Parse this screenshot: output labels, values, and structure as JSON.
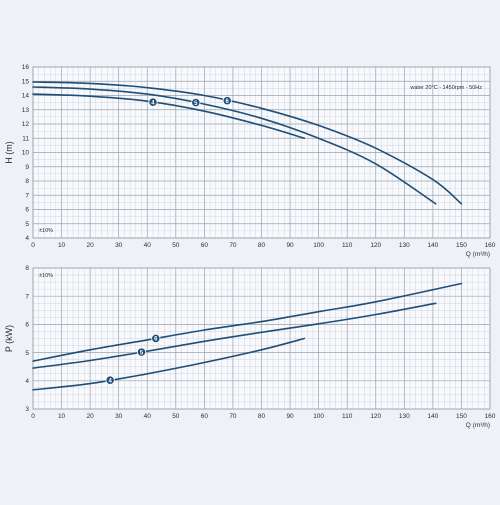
{
  "chart_data": [
    {
      "type": "line",
      "ylabel": "H (m)",
      "xlabel": "Q (m³/h)",
      "xlim": [
        0,
        160
      ],
      "ylim": [
        4,
        16
      ],
      "xticks": [
        0,
        10,
        20,
        30,
        40,
        50,
        60,
        70,
        80,
        90,
        100,
        110,
        120,
        130,
        140,
        150,
        160
      ],
      "yticks": [
        4,
        5,
        6,
        7,
        8,
        9,
        10,
        11,
        12,
        13,
        14,
        15,
        16
      ],
      "grid": true,
      "annotations": [
        "water 20°C - 1450rpm - 50Hz",
        "±10%"
      ],
      "series": [
        {
          "name": "4",
          "label_at": 42,
          "points": [
            [
              0,
              14.1
            ],
            [
              20,
              13.95
            ],
            [
              40,
              13.6
            ],
            [
              60,
              12.9
            ],
            [
              80,
              11.9
            ],
            [
              95,
              11.0
            ]
          ]
        },
        {
          "name": "5",
          "label_at": 57,
          "points": [
            [
              0,
              14.6
            ],
            [
              20,
              14.45
            ],
            [
              40,
              14.1
            ],
            [
              60,
              13.4
            ],
            [
              80,
              12.4
            ],
            [
              100,
              11.0
            ],
            [
              120,
              9.2
            ],
            [
              141,
              6.4
            ]
          ]
        },
        {
          "name": "6",
          "label_at": 68,
          "points": [
            [
              0,
              14.95
            ],
            [
              20,
              14.85
            ],
            [
              40,
              14.55
            ],
            [
              60,
              14.0
            ],
            [
              80,
              13.1
            ],
            [
              100,
              11.9
            ],
            [
              120,
              10.3
            ],
            [
              140,
              8.1
            ],
            [
              150,
              6.4
            ]
          ]
        }
      ]
    },
    {
      "type": "line",
      "ylabel": "P (kW)",
      "xlabel": "Q (m³/h)",
      "xlim": [
        0,
        160
      ],
      "ylim": [
        3,
        8
      ],
      "xticks": [
        0,
        10,
        20,
        30,
        40,
        50,
        60,
        70,
        80,
        90,
        100,
        110,
        120,
        130,
        140,
        150,
        160
      ],
      "yticks": [
        3,
        4,
        5,
        6,
        7,
        8
      ],
      "grid": true,
      "annotations": [
        "±10%"
      ],
      "series": [
        {
          "name": "4",
          "label_at": 27,
          "points": [
            [
              0,
              3.68
            ],
            [
              20,
              3.9
            ],
            [
              40,
              4.25
            ],
            [
              60,
              4.65
            ],
            [
              80,
              5.1
            ],
            [
              95,
              5.5
            ]
          ]
        },
        {
          "name": "5",
          "label_at": 38,
          "points": [
            [
              0,
              4.45
            ],
            [
              20,
              4.72
            ],
            [
              40,
              5.05
            ],
            [
              60,
              5.4
            ],
            [
              80,
              5.72
            ],
            [
              100,
              6.02
            ],
            [
              120,
              6.35
            ],
            [
              141,
              6.75
            ]
          ]
        },
        {
          "name": "6",
          "label_at": 43,
          "points": [
            [
              0,
              4.7
            ],
            [
              20,
              5.1
            ],
            [
              40,
              5.45
            ],
            [
              60,
              5.8
            ],
            [
              80,
              6.1
            ],
            [
              100,
              6.45
            ],
            [
              120,
              6.8
            ],
            [
              150,
              7.45
            ]
          ]
        }
      ]
    }
  ],
  "colors": {
    "curve": "#1f4e79",
    "grid": "#9aa3ad",
    "text": "#2b2f36",
    "background": "#eef1f6"
  }
}
